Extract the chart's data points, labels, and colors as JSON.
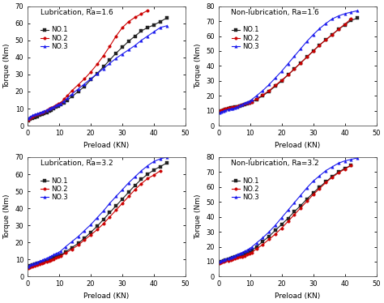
{
  "subplots": [
    {
      "title": "Lubrication, Ra=1.6",
      "xlim": [
        0,
        50
      ],
      "ylim": [
        0,
        70
      ],
      "yticks": [
        0,
        10,
        20,
        30,
        40,
        50,
        60,
        70
      ],
      "series": [
        {
          "label": "NO.1",
          "color": "#222222",
          "marker": "s",
          "x": [
            0.3,
            0.8,
            1.5,
            2.2,
            3.0,
            3.8,
            4.5,
            5.2,
            6.0,
            6.8,
            7.5,
            8.2,
            9.0,
            9.8,
            10.5,
            11.5,
            12.5,
            14,
            16,
            18,
            20,
            22,
            24,
            26,
            28,
            30,
            32,
            34,
            36,
            38,
            40,
            42,
            44
          ],
          "y": [
            3.0,
            3.8,
            4.5,
            5.0,
            5.5,
            6.0,
            6.5,
            7.0,
            7.8,
            8.5,
            9.2,
            10.0,
            10.8,
            11.5,
            12.2,
            13.5,
            15.0,
            17.0,
            20.0,
            23.0,
            27.0,
            30.5,
            34.5,
            38.5,
            42.5,
            46.0,
            49.5,
            52.5,
            55.5,
            57.5,
            59.0,
            61.0,
            63.0
          ]
        },
        {
          "label": "NO.2",
          "color": "#cc0000",
          "marker": "o",
          "x": [
            0.3,
            0.8,
            1.5,
            2.2,
            3.0,
            3.8,
            4.5,
            5.2,
            6.0,
            6.8,
            7.5,
            8.2,
            9.0,
            9.8,
            10.5,
            11.5,
            12.5,
            14,
            16,
            18,
            20,
            22,
            24,
            26,
            28,
            30,
            32,
            34,
            36,
            38
          ],
          "y": [
            3.5,
            4.5,
            5.5,
            6.0,
            6.5,
            7.0,
            7.5,
            8.2,
            9.0,
            9.8,
            10.5,
            11.2,
            12.0,
            12.8,
            13.5,
            15.5,
            17.5,
            20.5,
            24.0,
            27.5,
            31.5,
            36.0,
            41.0,
            46.5,
            52.5,
            57.5,
            61.0,
            63.5,
            65.5,
            67.5
          ]
        },
        {
          "label": "NO.3",
          "color": "#1a1aee",
          "marker": "^",
          "x": [
            0.3,
            0.8,
            1.5,
            2.2,
            3.0,
            3.8,
            4.5,
            5.2,
            6.0,
            6.8,
            7.5,
            8.2,
            9.0,
            9.8,
            10.5,
            11.5,
            12.5,
            14,
            16,
            18,
            20,
            22,
            24,
            26,
            28,
            30,
            32,
            34,
            36,
            38,
            40,
            42,
            44
          ],
          "y": [
            4.5,
            5.2,
            6.0,
            6.5,
            7.0,
            7.5,
            8.0,
            8.5,
            9.2,
            9.8,
            10.5,
            11.0,
            11.8,
            12.5,
            13.0,
            14.5,
            16.0,
            18.5,
            21.5,
            24.5,
            27.5,
            30.5,
            33.5,
            36.5,
            39.5,
            42.0,
            44.5,
            47.0,
            50.0,
            52.5,
            55.0,
            57.5,
            58.5
          ]
        }
      ]
    },
    {
      "title": "Non-lubrication, Ra=1.6",
      "xlim": [
        0,
        50
      ],
      "ylim": [
        0,
        80
      ],
      "yticks": [
        0,
        10,
        20,
        30,
        40,
        50,
        60,
        70,
        80
      ],
      "series": [
        {
          "label": "NO.1",
          "color": "#222222",
          "marker": "s",
          "x": [
            0.3,
            0.8,
            1.5,
            2.2,
            3.0,
            3.8,
            4.5,
            5.2,
            6.0,
            6.8,
            7.5,
            8.2,
            9.0,
            9.8,
            10.5,
            12,
            14,
            16,
            18,
            20,
            22,
            24,
            26,
            28,
            30,
            32,
            34,
            36,
            38,
            40,
            42,
            44
          ],
          "y": [
            9.5,
            10.0,
            10.5,
            11.0,
            11.5,
            11.8,
            12.0,
            12.3,
            12.8,
            13.2,
            13.8,
            14.2,
            14.8,
            15.2,
            15.8,
            17.5,
            20.0,
            23.0,
            26.5,
            30.0,
            34.0,
            38.0,
            42.0,
            46.0,
            50.0,
            54.0,
            57.5,
            61.0,
            64.5,
            67.5,
            70.5,
            72.0
          ]
        },
        {
          "label": "NO.2",
          "color": "#cc0000",
          "marker": "o",
          "x": [
            0.3,
            0.8,
            1.5,
            2.2,
            3.0,
            3.8,
            4.5,
            5.2,
            6.0,
            6.8,
            7.5,
            8.2,
            9.0,
            9.8,
            10.5,
            12,
            14,
            16,
            18,
            20,
            22,
            24,
            26,
            28,
            30,
            32,
            34,
            36,
            38,
            40,
            42
          ],
          "y": [
            10.0,
            10.5,
            11.0,
            11.5,
            12.0,
            12.2,
            12.5,
            12.8,
            13.2,
            13.6,
            14.0,
            14.5,
            15.0,
            15.5,
            16.0,
            18.0,
            20.5,
            23.5,
            27.0,
            30.5,
            34.0,
            38.0,
            42.0,
            46.0,
            50.0,
            54.0,
            57.5,
            61.0,
            64.5,
            68.0,
            71.5
          ]
        },
        {
          "label": "NO.3",
          "color": "#1a1aee",
          "marker": "^",
          "x": [
            0.3,
            0.8,
            1.5,
            2.2,
            3.0,
            3.8,
            4.5,
            5.2,
            6.0,
            6.8,
            7.5,
            8.2,
            9.0,
            9.8,
            10.5,
            12,
            14,
            16,
            18,
            20,
            22,
            24,
            26,
            28,
            30,
            32,
            34,
            36,
            38,
            40,
            42,
            44
          ],
          "y": [
            8.5,
            9.2,
            9.8,
            10.2,
            10.8,
            11.2,
            11.5,
            12.0,
            12.8,
            13.5,
            14.2,
            15.0,
            15.8,
            16.5,
            17.5,
            20.0,
            23.5,
            27.5,
            32.0,
            36.5,
            41.5,
            46.5,
            51.5,
            56.5,
            61.0,
            65.0,
            68.5,
            71.5,
            73.5,
            75.0,
            76.0,
            77.0
          ]
        }
      ]
    },
    {
      "title": "Lubrication, Ra=3.2",
      "xlim": [
        0,
        50
      ],
      "ylim": [
        0,
        70
      ],
      "yticks": [
        0,
        10,
        20,
        30,
        40,
        50,
        60,
        70
      ],
      "series": [
        {
          "label": "NO.1",
          "color": "#222222",
          "marker": "s",
          "x": [
            0.3,
            0.8,
            1.5,
            2.2,
            3.0,
            3.8,
            4.5,
            5.2,
            6.0,
            6.8,
            7.5,
            8.2,
            9.0,
            9.8,
            10.5,
            12,
            14,
            16,
            18,
            20,
            22,
            24,
            26,
            28,
            30,
            32,
            34,
            36,
            38,
            40,
            42,
            44
          ],
          "y": [
            5.5,
            6.2,
            6.8,
            7.2,
            7.6,
            8.0,
            8.4,
            8.8,
            9.4,
            9.9,
            10.5,
            11.0,
            11.5,
            12.0,
            12.6,
            14.5,
            17.0,
            19.5,
            22.5,
            26.0,
            29.5,
            33.5,
            37.5,
            41.5,
            45.5,
            49.5,
            53.5,
            57.0,
            60.0,
            62.5,
            64.5,
            66.5
          ]
        },
        {
          "label": "NO.2",
          "color": "#cc0000",
          "marker": "o",
          "x": [
            0.3,
            0.8,
            1.5,
            2.2,
            3.0,
            3.8,
            4.5,
            5.2,
            6.0,
            6.8,
            7.5,
            8.2,
            9.0,
            9.8,
            10.5,
            12,
            14,
            16,
            18,
            20,
            22,
            24,
            26,
            28,
            30,
            32,
            34,
            36,
            38,
            40,
            42
          ],
          "y": [
            5.0,
            5.5,
            6.0,
            6.5,
            7.0,
            7.4,
            7.8,
            8.2,
            8.8,
            9.3,
            9.8,
            10.4,
            10.9,
            11.4,
            12.0,
            13.8,
            16.0,
            18.5,
            21.5,
            24.5,
            27.5,
            31.0,
            35.0,
            39.0,
            43.0,
            47.0,
            51.0,
            54.5,
            57.5,
            59.5,
            62.0
          ]
        },
        {
          "label": "NO.3",
          "color": "#1a1aee",
          "marker": "^",
          "x": [
            0.3,
            0.8,
            1.5,
            2.2,
            3.0,
            3.8,
            4.5,
            5.2,
            6.0,
            6.8,
            7.5,
            8.2,
            9.0,
            9.8,
            10.5,
            12,
            14,
            16,
            18,
            20,
            22,
            24,
            26,
            28,
            30,
            32,
            34,
            36,
            38,
            40,
            42,
            44
          ],
          "y": [
            6.0,
            6.8,
            7.5,
            8.0,
            8.5,
            9.0,
            9.5,
            10.0,
            10.8,
            11.4,
            12.0,
            12.8,
            13.5,
            14.2,
            15.0,
            17.5,
            20.5,
            23.5,
            27.0,
            30.5,
            34.5,
            38.5,
            43.0,
            47.0,
            51.0,
            55.0,
            58.5,
            62.0,
            65.0,
            67.5,
            69.0,
            70.0
          ]
        }
      ]
    },
    {
      "title": "Non-lubrication, Ra=3.2",
      "xlim": [
        0,
        50
      ],
      "ylim": [
        0,
        80
      ],
      "yticks": [
        0,
        10,
        20,
        30,
        40,
        50,
        60,
        70,
        80
      ],
      "series": [
        {
          "label": "NO.1",
          "color": "#222222",
          "marker": "s",
          "x": [
            0.3,
            0.8,
            1.5,
            2.2,
            3.0,
            3.8,
            4.5,
            5.2,
            6.0,
            6.8,
            7.5,
            8.2,
            9.0,
            9.8,
            10.5,
            12,
            14,
            16,
            18,
            20,
            22,
            24,
            26,
            28,
            30,
            32,
            34,
            36,
            38,
            40,
            42
          ],
          "y": [
            9.5,
            10.2,
            10.8,
            11.2,
            11.5,
            12.0,
            12.5,
            13.0,
            13.8,
            14.3,
            14.8,
            15.5,
            16.0,
            16.8,
            17.5,
            20.0,
            23.5,
            27.0,
            31.0,
            35.0,
            39.0,
            43.5,
            47.5,
            52.0,
            56.0,
            60.0,
            63.5,
            67.0,
            70.0,
            72.5,
            74.5
          ]
        },
        {
          "label": "NO.2",
          "color": "#cc0000",
          "marker": "o",
          "x": [
            0.3,
            0.8,
            1.5,
            2.2,
            3.0,
            3.8,
            4.5,
            5.2,
            6.0,
            6.8,
            7.5,
            8.2,
            9.0,
            9.8,
            10.5,
            12,
            14,
            16,
            18,
            20,
            22,
            24,
            26,
            28,
            30,
            32,
            34,
            36,
            38,
            40,
            42
          ],
          "y": [
            9.0,
            9.5,
            10.0,
            10.4,
            10.8,
            11.2,
            11.6,
            12.0,
            12.6,
            13.0,
            13.5,
            14.0,
            14.8,
            15.5,
            16.2,
            18.5,
            21.5,
            25.0,
            28.5,
            32.5,
            37.0,
            41.5,
            46.0,
            50.5,
            55.0,
            59.0,
            63.0,
            66.5,
            69.5,
            72.0,
            74.5
          ]
        },
        {
          "label": "NO.3",
          "color": "#1a1aee",
          "marker": "^",
          "x": [
            0.3,
            0.8,
            1.5,
            2.2,
            3.0,
            3.8,
            4.5,
            5.2,
            6.0,
            6.8,
            7.5,
            8.2,
            9.0,
            9.8,
            10.5,
            12,
            14,
            16,
            18,
            20,
            22,
            24,
            26,
            28,
            30,
            32,
            34,
            36,
            38,
            40,
            42,
            44
          ],
          "y": [
            9.8,
            10.5,
            11.2,
            11.8,
            12.2,
            12.8,
            13.4,
            14.0,
            14.8,
            15.5,
            16.2,
            17.0,
            17.8,
            18.8,
            19.8,
            22.5,
            26.0,
            30.0,
            34.5,
            39.5,
            44.5,
            49.5,
            54.5,
            59.5,
            64.0,
            67.5,
            71.0,
            73.5,
            76.0,
            77.5,
            78.5,
            79.5
          ]
        }
      ]
    }
  ],
  "xlabel": "Preload (KN)",
  "ylabel": "Torque (Nm)",
  "xticks": [
    0,
    10,
    20,
    30,
    40,
    50
  ],
  "background_color": "#ffffff",
  "title_fontsize": 6.5,
  "label_fontsize": 6.5,
  "tick_fontsize": 6,
  "legend_fontsize": 6,
  "markersize": 2.5,
  "linewidth": 0.8
}
